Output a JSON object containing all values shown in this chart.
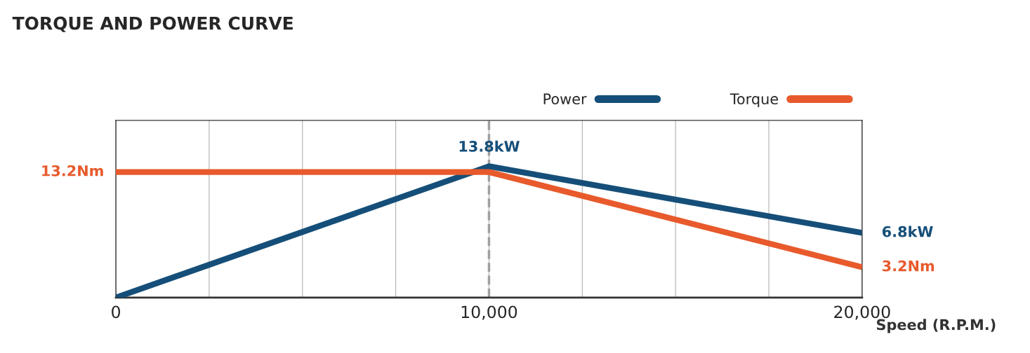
{
  "chart_data": {
    "type": "line",
    "title": "TORQUE AND POWER CURVE",
    "xlabel": "Speed (R.P.M.)",
    "x": [
      0,
      10000,
      20000
    ],
    "series": [
      {
        "name": "Power",
        "color": "#154f79",
        "values": [
          0,
          13.8,
          6.8
        ],
        "value_labels": [
          null,
          "13.8kW",
          "6.8kW"
        ]
      },
      {
        "name": "Torque",
        "color": "#e85a2c",
        "values": [
          13.2,
          13.2,
          3.2
        ],
        "value_labels": [
          "13.2Nm",
          null,
          "3.2Nm"
        ]
      }
    ],
    "xlim": [
      0,
      20000
    ],
    "xticks": [
      0,
      {
        "value": 2500,
        "label": null
      },
      {
        "value": 5000,
        "label": null
      },
      {
        "value": 7500,
        "label": null
      },
      {
        "value": 10000,
        "label": "10,000"
      },
      {
        "value": 12500,
        "label": null
      },
      {
        "value": 15000,
        "label": null
      },
      {
        "value": 17500,
        "label": null
      },
      {
        "value": 20000,
        "label": "20,000"
      }
    ],
    "ref_lines": [
      {
        "axis": "x",
        "value": 10000,
        "color": "#a0a0a0",
        "line_style": "dashed"
      }
    ],
    "grid": "x",
    "legend": "top right",
    "tick_labels": "x",
    "line_style": "solid",
    "marker": "none"
  }
}
